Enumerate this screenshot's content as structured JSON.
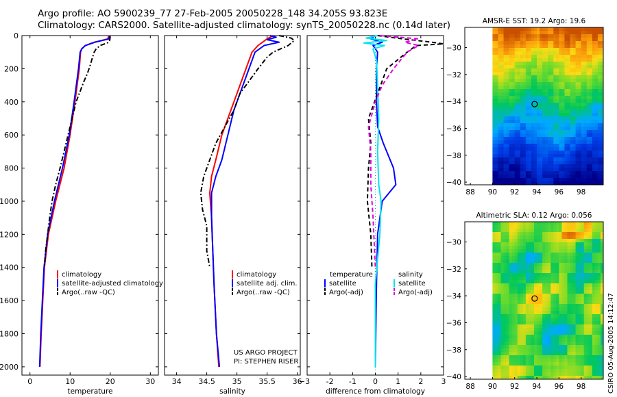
{
  "header": {
    "line1": "Argo profile: AO 5900239_77 27-Feb-2005 20050228_148 34.205S 93.823E",
    "line2": "Climatology: CARS2000. Satellite-adjusted climatology: synTS_20050228.nc (0.14d later)"
  },
  "side_label": "CSIRO 05-Aug-2005 14:12:47",
  "colors": {
    "climatology": "#ff0000",
    "satellite": "#0000ff",
    "argo": "#000000",
    "sat_salinity": "#00e5ee",
    "argo_salinity_adj": "#e000e0"
  },
  "chart_data": [
    {
      "type": "line",
      "id": "temperature",
      "xlabel": "temperature",
      "ylabel": "",
      "xlim": [
        -2,
        32
      ],
      "ylim": [
        2050,
        0
      ],
      "xticks": [
        0,
        10,
        20,
        30
      ],
      "yticks": [
        0,
        200,
        400,
        600,
        800,
        1000,
        1200,
        1400,
        1600,
        1800,
        2000
      ],
      "legend": [
        "climatology",
        "satellite-adjusted climatology",
        "Argo(..raw -QC)"
      ],
      "series": [
        {
          "name": "climatology",
          "style": "solid",
          "color": "#ff0000",
          "points": [
            [
              19.6,
              0
            ],
            [
              19.4,
              20
            ],
            [
              16,
              40
            ],
            [
              13.8,
              60
            ],
            [
              12.9,
              80
            ],
            [
              12.6,
              100
            ],
            [
              12.3,
              200
            ],
            [
              11.2,
              400
            ],
            [
              10,
              600
            ],
            [
              8.5,
              800
            ],
            [
              6.4,
              1000
            ],
            [
              4.6,
              1200
            ],
            [
              3.6,
              1400
            ],
            [
              3.2,
              1600
            ],
            [
              2.8,
              1800
            ],
            [
              2.5,
              2000
            ]
          ]
        },
        {
          "name": "satellite-adjusted climatology",
          "style": "solid",
          "color": "#0000ff",
          "points": [
            [
              19.9,
              0
            ],
            [
              19.7,
              20
            ],
            [
              16.2,
              40
            ],
            [
              13.8,
              60
            ],
            [
              12.9,
              80
            ],
            [
              12.5,
              100
            ],
            [
              12.1,
              200
            ],
            [
              11.0,
              400
            ],
            [
              9.8,
              600
            ],
            [
              8.1,
              800
            ],
            [
              6.1,
              1000
            ],
            [
              4.4,
              1200
            ],
            [
              3.5,
              1400
            ],
            [
              3.1,
              1600
            ],
            [
              2.7,
              1800
            ],
            [
              2.4,
              2000
            ]
          ]
        },
        {
          "name": "Argo(..raw -QC)",
          "style": "dashdot",
          "color": "#000000",
          "points": [
            [
              20.0,
              5
            ],
            [
              19.9,
              25
            ],
            [
              19.7,
              40
            ],
            [
              17.5,
              60
            ],
            [
              16.5,
              80
            ],
            [
              16.0,
              100
            ],
            [
              15.6,
              130
            ],
            [
              15.0,
              180
            ],
            [
              14.3,
              230
            ],
            [
              13.4,
              280
            ],
            [
              12.6,
              330
            ],
            [
              11.5,
              400
            ],
            [
              10.5,
              500
            ],
            [
              9.5,
              600
            ],
            [
              8.5,
              700
            ],
            [
              7.5,
              800
            ],
            [
              6.4,
              900
            ],
            [
              5.5,
              1000
            ],
            [
              4.9,
              1100
            ],
            [
              4.4,
              1200
            ],
            [
              3.9,
              1300
            ],
            [
              3.6,
              1400
            ]
          ]
        }
      ]
    },
    {
      "type": "line",
      "id": "salinity",
      "xlabel": "salinity",
      "ylabel": "",
      "xlim": [
        33.8,
        36.05
      ],
      "ylim": [
        2050,
        0
      ],
      "xticks": [
        34,
        34.5,
        35,
        35.5,
        36
      ],
      "legend": [
        "climatology",
        "satellite adj. clim.",
        "Argo(..raw -QC)"
      ],
      "annotation": [
        "US ARGO PROJECT",
        "PI: STEPHEN RISER"
      ],
      "series": [
        {
          "name": "climatology",
          "style": "solid",
          "color": "#ff0000",
          "points": [
            [
              35.6,
              0
            ],
            [
              35.5,
              20
            ],
            [
              35.35,
              60
            ],
            [
              35.25,
              100
            ],
            [
              35.15,
              200
            ],
            [
              35.0,
              350
            ],
            [
              34.9,
              450
            ],
            [
              34.75,
              600
            ],
            [
              34.65,
              750
            ],
            [
              34.58,
              850
            ],
            [
              34.55,
              950
            ],
            [
              34.58,
              1100
            ],
            [
              34.6,
              1300
            ],
            [
              34.62,
              1500
            ],
            [
              34.66,
              1800
            ],
            [
              34.7,
              2000
            ]
          ]
        },
        {
          "name": "satellite adj. clim.",
          "style": "solid",
          "color": "#0000ff",
          "points": [
            [
              35.55,
              0
            ],
            [
              35.65,
              10
            ],
            [
              35.5,
              25
            ],
            [
              35.7,
              40
            ],
            [
              35.45,
              60
            ],
            [
              35.3,
              100
            ],
            [
              35.2,
              200
            ],
            [
              35.05,
              350
            ],
            [
              34.95,
              450
            ],
            [
              34.85,
              600
            ],
            [
              34.75,
              750
            ],
            [
              34.65,
              850
            ],
            [
              34.58,
              950
            ],
            [
              34.58,
              1100
            ],
            [
              34.6,
              1300
            ],
            [
              34.62,
              1500
            ],
            [
              34.66,
              1800
            ],
            [
              34.71,
              2000
            ]
          ]
        },
        {
          "name": "Argo(..raw -QC)",
          "style": "dashdot",
          "color": "#000000",
          "points": [
            [
              35.7,
              0
            ],
            [
              35.9,
              15
            ],
            [
              35.95,
              30
            ],
            [
              35.85,
              60
            ],
            [
              35.6,
              100
            ],
            [
              35.5,
              130
            ],
            [
              35.35,
              200
            ],
            [
              35.15,
              300
            ],
            [
              35.05,
              350
            ],
            [
              34.95,
              450
            ],
            [
              34.8,
              550
            ],
            [
              34.65,
              650
            ],
            [
              34.55,
              750
            ],
            [
              34.45,
              850
            ],
            [
              34.4,
              950
            ],
            [
              34.43,
              1050
            ],
            [
              34.5,
              1150
            ],
            [
              34.5,
              1300
            ],
            [
              34.55,
              1400
            ]
          ]
        }
      ]
    },
    {
      "type": "line",
      "id": "difference",
      "xlabel": "difference from climatology",
      "ylabel": "",
      "xlim": [
        -3,
        3
      ],
      "ylim": [
        2050,
        0
      ],
      "xticks": [
        -3,
        -2,
        -1,
        0,
        1,
        2,
        3
      ],
      "legend_left": [
        "temperature",
        "satellite",
        "Argo(-adj)"
      ],
      "legend_right": [
        "salinity",
        "satellite",
        "Argo(-adj)"
      ],
      "series": [
        {
          "name": "temperature satellite",
          "style": "solid",
          "color": "#0000ff",
          "points": [
            [
              0,
              0
            ],
            [
              -0.2,
              20
            ],
            [
              0.3,
              40
            ],
            [
              -0.1,
              60
            ],
            [
              0.1,
              100
            ],
            [
              0.05,
              200
            ],
            [
              0.05,
              400
            ],
            [
              0.1,
              550
            ],
            [
              0.35,
              650
            ],
            [
              0.8,
              800
            ],
            [
              0.9,
              900
            ],
            [
              0.3,
              1000
            ],
            [
              0.1,
              1200
            ],
            [
              0.05,
              1500
            ],
            [
              0,
              2000
            ]
          ]
        },
        {
          "name": "temperature Argo(-adj)",
          "style": "dash",
          "color": "#000000",
          "points": [
            [
              0.1,
              0
            ],
            [
              1.2,
              20
            ],
            [
              2.5,
              40
            ],
            [
              3,
              50
            ],
            [
              1.8,
              60
            ],
            [
              1.4,
              100
            ],
            [
              0.5,
              200
            ],
            [
              0.1,
              350
            ],
            [
              -0.3,
              500
            ],
            [
              -0.2,
              650
            ],
            [
              -0.3,
              800
            ],
            [
              -0.35,
              1000
            ],
            [
              -0.2,
              1200
            ],
            [
              -0.15,
              1400
            ]
          ]
        },
        {
          "name": "salinity satellite",
          "style": "solid",
          "color": "#00e5ee",
          "points": [
            [
              0.1,
              0
            ],
            [
              -0.4,
              15
            ],
            [
              0.5,
              30
            ],
            [
              -0.5,
              45
            ],
            [
              0.4,
              60
            ],
            [
              -0.1,
              80
            ],
            [
              0.05,
              150
            ],
            [
              0.1,
              300
            ],
            [
              0.15,
              500
            ],
            [
              0.1,
              700
            ],
            [
              0.15,
              900
            ],
            [
              0.25,
              1000
            ],
            [
              0.2,
              1200
            ],
            [
              0,
              1500
            ],
            [
              0,
              2000
            ]
          ]
        },
        {
          "name": "salinity Argo(-adj)",
          "style": "dash",
          "color": "#e000e0",
          "points": [
            [
              0.2,
              0
            ],
            [
              1.9,
              20
            ],
            [
              1.3,
              40
            ],
            [
              1.9,
              60
            ],
            [
              1.4,
              100
            ],
            [
              0.8,
              200
            ],
            [
              0.3,
              300
            ],
            [
              0.0,
              400
            ],
            [
              -0.3,
              550
            ],
            [
              -0.2,
              700
            ],
            [
              -0.2,
              900
            ],
            [
              -0.1,
              1100
            ],
            [
              -0.05,
              1250
            ],
            [
              0,
              1400
            ]
          ]
        }
      ]
    },
    {
      "type": "heatmap",
      "id": "sst-map",
      "title": "AMSR-E SST: 19.2 Argo: 19.6",
      "xlim": [
        87.5,
        100
      ],
      "ylim": [
        -40.2,
        -28.5
      ],
      "xticks": [
        88,
        90,
        92,
        94,
        96,
        98
      ],
      "yticks": [
        -30,
        -32,
        -34,
        -36,
        -38,
        -40
      ],
      "marker": {
        "lon": 93.8,
        "lat": -34.2
      }
    },
    {
      "type": "heatmap",
      "id": "sla-map",
      "title": "Altimetric SLA: 0.12 Argo: 0.056",
      "xlim": [
        87.5,
        100
      ],
      "ylim": [
        -40.2,
        -28.5
      ],
      "xticks": [
        88,
        90,
        92,
        94,
        96,
        98
      ],
      "yticks": [
        -30,
        -32,
        -34,
        -36,
        -38,
        -40
      ],
      "marker": {
        "lon": 93.8,
        "lat": -34.2
      }
    }
  ]
}
